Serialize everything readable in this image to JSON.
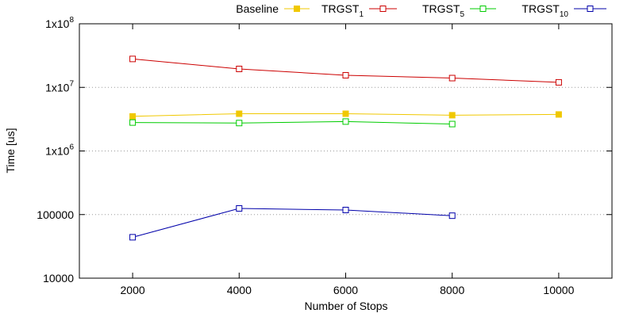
{
  "chart_data": {
    "type": "line",
    "xlabel": "Number of Stops",
    "ylabel": "Time [us]",
    "yscale": "log",
    "xlim": [
      1000,
      11000
    ],
    "ylim": [
      10000,
      100000000
    ],
    "x_ticks": [
      "2000",
      "4000",
      "6000",
      "8000",
      "10000"
    ],
    "x_tick_values": [
      2000,
      4000,
      6000,
      8000,
      10000
    ],
    "y_ticks": [
      {
        "value": 10000,
        "label": "10000",
        "base": "",
        "exp": ""
      },
      {
        "value": 100000,
        "label": "100000",
        "base": "",
        "exp": ""
      },
      {
        "value": 1000000,
        "label": "",
        "base": "1x10",
        "exp": "6"
      },
      {
        "value": 10000000,
        "label": "",
        "base": "1x10",
        "exp": "7"
      },
      {
        "value": 100000000,
        "label": "",
        "base": "1x10",
        "exp": "8"
      }
    ],
    "grid": "horizontal dotted",
    "legend_position": "top",
    "series": [
      {
        "name": "Baseline",
        "name_base": "Baseline",
        "name_sub": "",
        "color": "#f0c800",
        "marker": "filled-square",
        "x": [
          2000,
          4000,
          6000,
          8000,
          10000
        ],
        "values": [
          3500000,
          3850000,
          3850000,
          3650000,
          3750000
        ]
      },
      {
        "name": "TRGST1",
        "name_base": "TRGST",
        "name_sub": "1",
        "color": "#cc0000",
        "marker": "open-square",
        "x": [
          2000,
          4000,
          6000,
          8000,
          10000
        ],
        "values": [
          28000000,
          19500000,
          15500000,
          14000000,
          12000000
        ]
      },
      {
        "name": "TRGST5",
        "name_base": "TRGST",
        "name_sub": "5",
        "color": "#00cc00",
        "marker": "open-square",
        "x": [
          2000,
          4000,
          6000,
          8000
        ],
        "values": [
          2800000,
          2750000,
          2900000,
          2650000
        ]
      },
      {
        "name": "TRGST10",
        "name_base": "TRGST",
        "name_sub": "10",
        "color": "#0000aa",
        "marker": "open-square",
        "x": [
          2000,
          4000,
          6000,
          8000
        ],
        "values": [
          44000,
          125000,
          118000,
          96000
        ]
      }
    ]
  }
}
